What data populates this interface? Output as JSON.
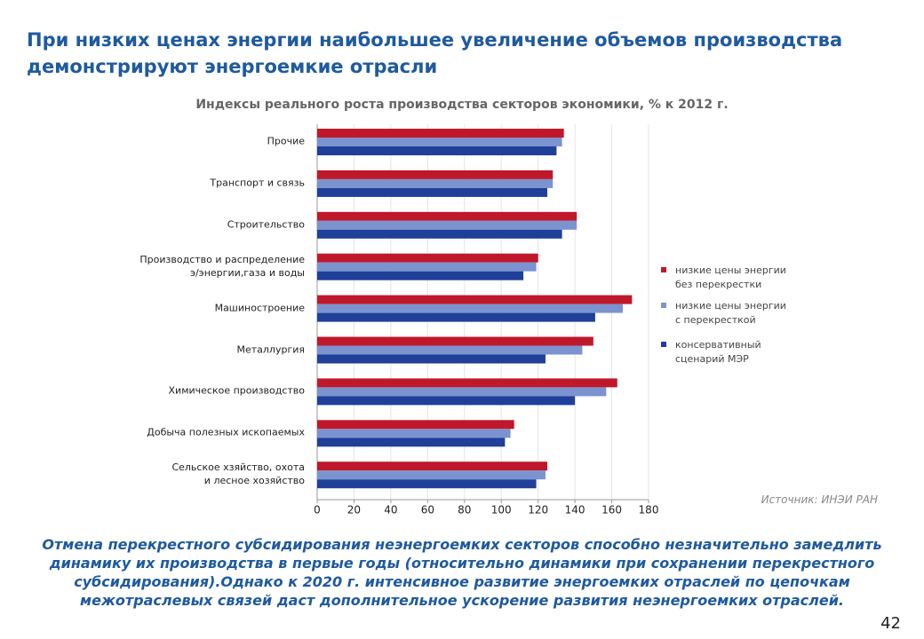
{
  "title": "При низких ценах энергии наибольшее увеличение объемов производства\nдемонстрируют энергоемкие отрасли",
  "chart_data": {
    "type": "bar",
    "orientation": "horizontal",
    "title": "Индексы реального роста производства секторов экономики, % к 2012 г.",
    "categories": [
      "Прочие",
      "Транспорт и связь",
      "Строительство",
      "Производство и распределение\nэ/энергии,газа и воды",
      "Машиностроение",
      "Металлургия",
      "Химическое производство",
      "Добыча полезных ископаемых",
      "Сельское хзяйство, охота\nи лесное хозяйство"
    ],
    "series": [
      {
        "name": "низкие цены энергии\nбез перекрестки",
        "color": "#c0182b",
        "values": [
          134,
          128,
          141,
          120,
          171,
          150,
          163,
          107,
          125
        ]
      },
      {
        "name": "низкие цены энергии\nс перекресткой",
        "color": "#7b93cf",
        "values": [
          133,
          128,
          141,
          119,
          166,
          144,
          157,
          105,
          124
        ]
      },
      {
        "name": "консервативный\nсценарий МЭР",
        "color": "#1f3f99",
        "values": [
          130,
          125,
          133,
          112,
          151,
          124,
          140,
          102,
          119
        ]
      }
    ],
    "xlim": [
      0,
      180
    ],
    "xticks": [
      0,
      20,
      40,
      60,
      80,
      100,
      120,
      140,
      160,
      180
    ],
    "grid": true
  },
  "source": "Источник: ИНЭИ РАН",
  "note": "Отмена перекрестного субсидирования неэнергоемких секторов способно незначительно замедлить\nдинамику их производства в первые годы (относительно динамики при сохранении перекрестного\nсубсидирования).Однако к 2020 г. интенсивное развитие энергоемких отраслей по цепочкам\nмежотраслевых связей даст дополнительное ускорение развития неэнергоемких отраслей.",
  "page_number": 42
}
